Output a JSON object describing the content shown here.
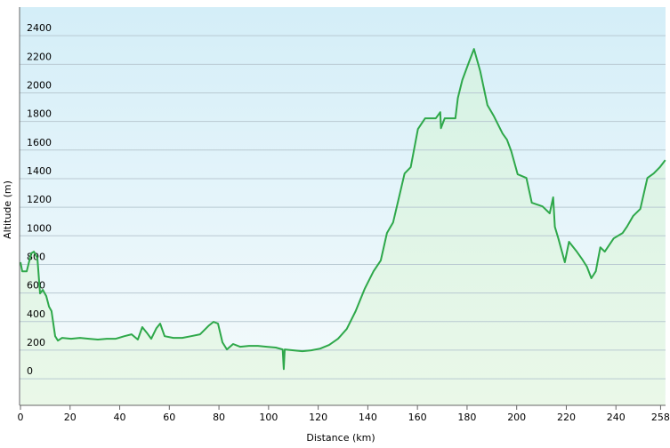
{
  "chart_data": {
    "type": "area",
    "x_label": "Distance  (km)",
    "y_label": "Altitude (m)",
    "color": "#2ea84a",
    "x": [
      0,
      0.7,
      2.5,
      4.3,
      5.4,
      6.8,
      7.9,
      9.0,
      10.4,
      11.5,
      12.5,
      14.0,
      15.1,
      16.8,
      20.4,
      24.0,
      27.6,
      31.2,
      34.8,
      38.4,
      41.9,
      44.8,
      47.3,
      49.1,
      50.9,
      52.7,
      54.8,
      56.3,
      58.1,
      61.6,
      65.2,
      68.8,
      72.4,
      76.0,
      77.8,
      79.6,
      81.4,
      83.2,
      85.7,
      88.5,
      92.1,
      95.7,
      99.3,
      102.9,
      105.7,
      106.1,
      106.5,
      110.0,
      113.6,
      117.2,
      120.8,
      124.4,
      128.0,
      131.5,
      135.1,
      138.7,
      142.3,
      145.2,
      147.7,
      150.2,
      152.3,
      154.8,
      157.3,
      160.2,
      163.1,
      167.4,
      169.2,
      169.5,
      171.0,
      175.3,
      176.3,
      178.1,
      181.0,
      182.8,
      185.3,
      188.2,
      190.7,
      194.3,
      196.1,
      197.8,
      200.4,
      203.9,
      206.1,
      210.4,
      213.3,
      214.7,
      215.4,
      216.8,
      219.4,
      221.1,
      224.0,
      226.5,
      228.3,
      230.1,
      231.9,
      233.7,
      235.5,
      239.1,
      242.7,
      244.4,
      246.9,
      249.8,
      252.7,
      255.2,
      257.7,
      259.9
    ],
    "values": [
      815,
      752,
      752,
      877,
      889,
      846,
      597,
      622,
      578,
      504,
      473,
      298,
      267,
      286,
      280,
      286,
      280,
      274,
      280,
      280,
      298,
      311,
      274,
      361,
      323,
      280,
      354,
      386,
      298,
      286,
      286,
      298,
      311,
      373,
      398,
      386,
      255,
      205,
      243,
      224,
      230,
      230,
      224,
      218,
      205,
      68,
      205,
      199,
      193,
      199,
      211,
      236,
      280,
      348,
      473,
      628,
      752,
      827,
      1020,
      1094,
      1250,
      1436,
      1480,
      1747,
      1822,
      1822,
      1865,
      1753,
      1822,
      1822,
      1965,
      2090,
      2226,
      2307,
      2152,
      1915,
      1840,
      1716,
      1672,
      1592,
      1430,
      1405,
      1231,
      1206,
      1157,
      1269,
      1063,
      982,
      815,
      958,
      895,
      833,
      784,
      703,
      752,
      920,
      889,
      982,
      1020,
      1063,
      1138,
      1188,
      1405,
      1436,
      1480,
      1530
    ],
    "xlim": [
      0,
      260
    ],
    "xticks": [
      0,
      20,
      40,
      60,
      80,
      100,
      120,
      140,
      160,
      180,
      200,
      220,
      240,
      258
    ],
    "ylim": [
      -186,
      2600
    ],
    "yticks": [
      0,
      200,
      400,
      600,
      800,
      1000,
      1200,
      1400,
      1600,
      1800,
      2000,
      2200,
      2400
    ],
    "grid": true
  }
}
